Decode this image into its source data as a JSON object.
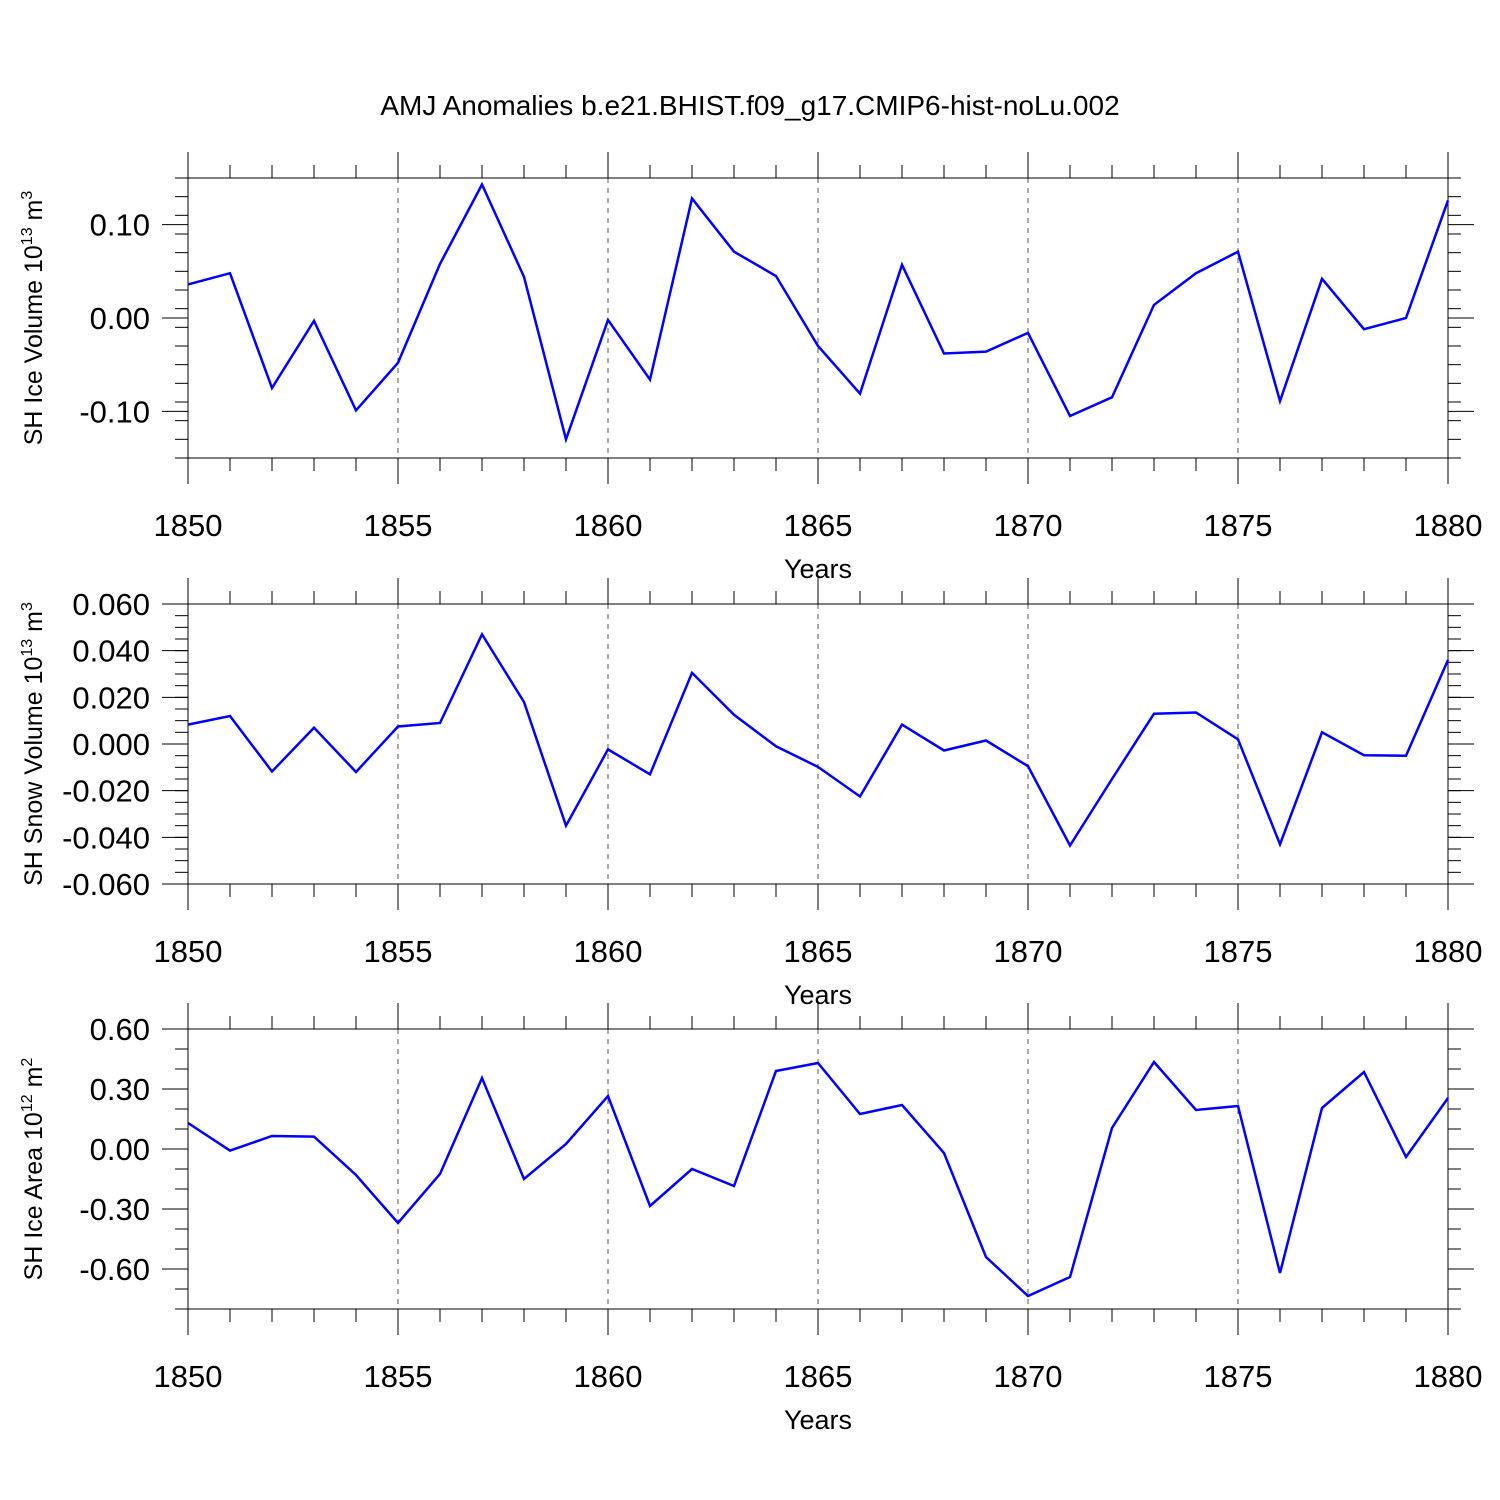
{
  "figure_title": "AMJ Anomalies b.e21.BHIST.f09_g17.CMIP6-hist-noLu.002",
  "line_color": "#0000ff",
  "chart_data": [
    {
      "type": "line",
      "ylabel_main": "SH Ice Volume 10",
      "ylabel_exp": "13",
      "ylabel_unit": " m",
      "ylabel_unit_exp": "3",
      "xlabel": "Years",
      "xlim": [
        1850,
        1880
      ],
      "ylim": [
        -0.15,
        0.15
      ],
      "yticks": [
        -0.1,
        0.0,
        0.1
      ],
      "ytick_labels": [
        "-0.10",
        "0.00",
        "0.10"
      ],
      "yminor_step": 0.02,
      "xticks": [
        1850,
        1855,
        1860,
        1865,
        1870,
        1875,
        1880
      ],
      "xtick_labels": [
        "1850",
        "1855",
        "1860",
        "1865",
        "1870",
        "1875",
        "1880"
      ],
      "x": [
        1850,
        1851,
        1852,
        1853,
        1854,
        1855,
        1856,
        1857,
        1858,
        1859,
        1860,
        1861,
        1862,
        1863,
        1864,
        1865,
        1866,
        1867,
        1868,
        1869,
        1870,
        1871,
        1872,
        1873,
        1874,
        1875,
        1876,
        1877,
        1878,
        1879,
        1880
      ],
      "values": [
        0.036,
        0.048,
        -0.075,
        -0.003,
        -0.099,
        -0.048,
        0.058,
        0.143,
        0.044,
        -0.13,
        -0.002,
        -0.066,
        0.128,
        0.071,
        0.045,
        -0.03,
        -0.081,
        0.057,
        -0.038,
        -0.036,
        -0.016,
        -0.105,
        -0.085,
        0.014,
        0.048,
        0.071,
        -0.089,
        0.042,
        -0.012,
        0.0,
        0.126
      ]
    },
    {
      "type": "line",
      "ylabel_main": "SH Snow Volume 10",
      "ylabel_exp": "13",
      "ylabel_unit": " m",
      "ylabel_unit_exp": "3",
      "xlabel": "Years",
      "xlim": [
        1850,
        1880
      ],
      "ylim": [
        -0.06,
        0.06
      ],
      "yticks": [
        -0.06,
        -0.04,
        -0.02,
        0.0,
        0.02,
        0.04,
        0.06
      ],
      "ytick_labels": [
        "-0.060",
        "-0.040",
        "-0.020",
        "0.000",
        "0.020",
        "0.040",
        "0.060"
      ],
      "yminor_step": 0.005,
      "xticks": [
        1850,
        1855,
        1860,
        1865,
        1870,
        1875,
        1880
      ],
      "xtick_labels": [
        "1850",
        "1855",
        "1860",
        "1865",
        "1870",
        "1875",
        "1880"
      ],
      "x": [
        1850,
        1851,
        1852,
        1853,
        1854,
        1855,
        1856,
        1857,
        1858,
        1859,
        1860,
        1861,
        1862,
        1863,
        1864,
        1865,
        1866,
        1867,
        1868,
        1869,
        1870,
        1871,
        1872,
        1873,
        1874,
        1875,
        1876,
        1877,
        1878,
        1879,
        1880
      ],
      "values": [
        0.0083,
        0.012,
        -0.0118,
        0.007,
        -0.012,
        0.0075,
        0.009,
        0.047,
        0.018,
        -0.035,
        -0.0023,
        -0.013,
        0.0305,
        0.0125,
        -0.001,
        -0.0098,
        -0.0225,
        0.0083,
        -0.0028,
        0.0015,
        -0.0095,
        -0.0435,
        -0.015,
        0.013,
        0.0135,
        0.002,
        -0.043,
        0.005,
        -0.0048,
        -0.005,
        0.036
      ]
    },
    {
      "type": "line",
      "ylabel_main": "SH Ice Area 10",
      "ylabel_exp": "12",
      "ylabel_unit": " m",
      "ylabel_unit_exp": "2",
      "xlabel": "Years",
      "xlim": [
        1850,
        1880
      ],
      "ylim": [
        -0.8,
        0.6
      ],
      "yticks": [
        -0.6,
        -0.3,
        0.0,
        0.3,
        0.6
      ],
      "ytick_labels": [
        "-0.60",
        "-0.30",
        "0.00",
        "0.30",
        "0.60"
      ],
      "yminor_step": 0.1,
      "xticks": [
        1850,
        1855,
        1860,
        1865,
        1870,
        1875,
        1880
      ],
      "xtick_labels": [
        "1850",
        "1855",
        "1860",
        "1865",
        "1870",
        "1875",
        "1880"
      ],
      "x": [
        1850,
        1851,
        1852,
        1853,
        1854,
        1855,
        1856,
        1857,
        1858,
        1859,
        1860,
        1861,
        1862,
        1863,
        1864,
        1865,
        1866,
        1867,
        1868,
        1869,
        1870,
        1871,
        1872,
        1873,
        1874,
        1875,
        1876,
        1877,
        1878,
        1879,
        1880
      ],
      "values": [
        0.13,
        -0.008,
        0.065,
        0.062,
        -0.13,
        -0.37,
        -0.125,
        0.355,
        -0.15,
        0.025,
        0.265,
        -0.285,
        -0.1,
        -0.185,
        0.39,
        0.43,
        0.175,
        0.22,
        -0.02,
        -0.54,
        -0.735,
        -0.64,
        0.105,
        0.435,
        0.195,
        0.215,
        -0.62,
        0.205,
        0.385,
        -0.04,
        0.255
      ]
    }
  ]
}
